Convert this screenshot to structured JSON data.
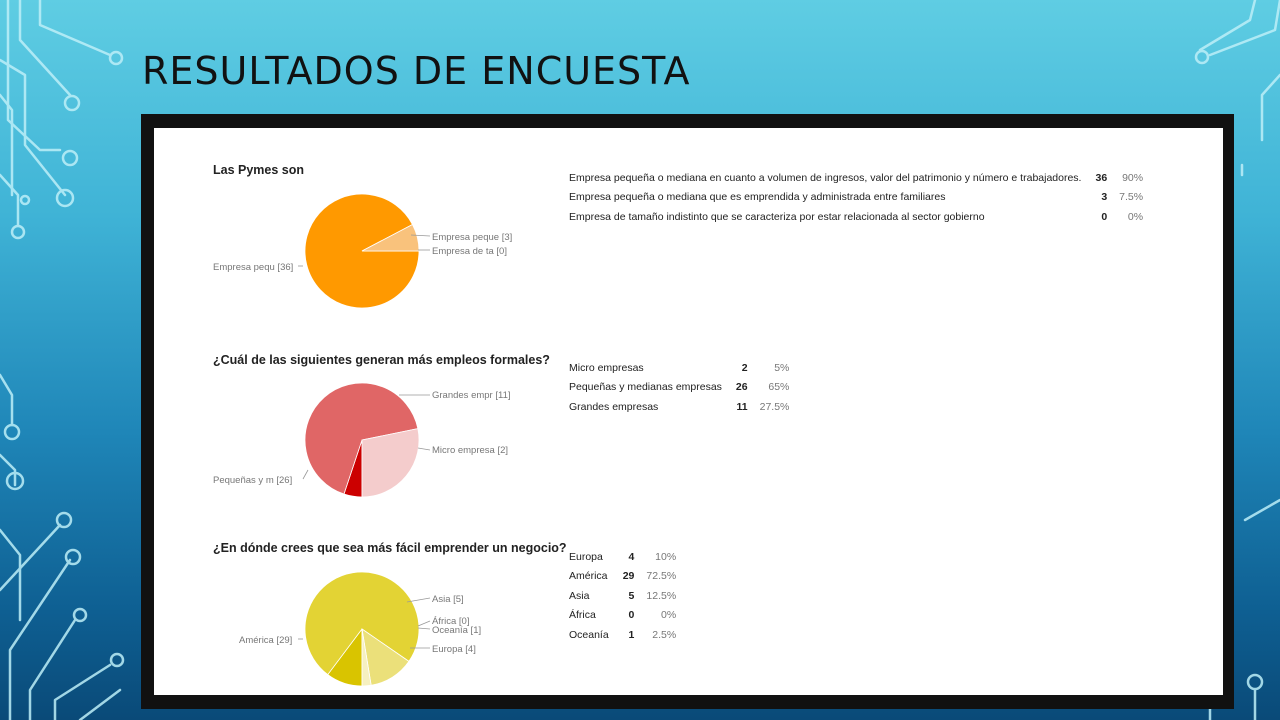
{
  "slide": {
    "title": "RESULTADOS DE ENCUESTA"
  },
  "chart_data": [
    {
      "type": "pie",
      "title": "Las Pymes son",
      "slices": [
        {
          "label": "Empresa pequeña o mediana en cuanto a volumen de ingresos, valor del patrimonio y número e trabajadores.",
          "pie_label": "Empresa pequ [36]",
          "count": 36,
          "pct": "90%",
          "color": "#ff9900"
        },
        {
          "label": "Empresa pequeña o mediana que es emprendida y administrada entre familiares",
          "pie_label": "Empresa peque [3]",
          "count": 3,
          "pct": "7.5%",
          "color": "#f9c27c"
        },
        {
          "label": "Empresa de tamaño indistinto que se caracteriza por estar relacionada al sector gobierno",
          "pie_label": "Empresa de ta [0]",
          "count": 0,
          "pct": "0%",
          "color": "#fde3c2"
        }
      ]
    },
    {
      "type": "pie",
      "title": "¿Cuál de las siguientes generan más empleos formales?",
      "slices": [
        {
          "label": "Micro empresas",
          "pie_label": "Micro empresa [2]",
          "count": 2,
          "pct": "5%",
          "color": "#cc0000"
        },
        {
          "label": "Pequeñas y medianas empresas",
          "pie_label": "Pequeñas y m [26]",
          "count": 26,
          "pct": "65%",
          "color": "#e06666"
        },
        {
          "label": "Grandes empresas",
          "pie_label": "Grandes empr [11]",
          "count": 11,
          "pct": "27.5%",
          "color": "#f4cccc"
        }
      ]
    },
    {
      "type": "pie",
      "title": "¿En dónde crees que sea más fácil emprender un negocio?",
      "slices": [
        {
          "label": "Europa",
          "pie_label": "Europa [4]",
          "count": 4,
          "pct": "10%",
          "color": "#d9c400"
        },
        {
          "label": "América",
          "pie_label": "América [29]",
          "count": 29,
          "pct": "72.5%",
          "color": "#e3d334"
        },
        {
          "label": "Asia",
          "pie_label": "Asia [5]",
          "count": 5,
          "pct": "12.5%",
          "color": "#ebe07a"
        },
        {
          "label": "África",
          "pie_label": "África [0]",
          "count": 0,
          "pct": "0%",
          "color": "#f3eba8"
        },
        {
          "label": "Oceanía",
          "pie_label": "Oceanía [1]",
          "count": 1,
          "pct": "2.5%",
          "color": "#f6f0c0"
        }
      ]
    }
  ]
}
